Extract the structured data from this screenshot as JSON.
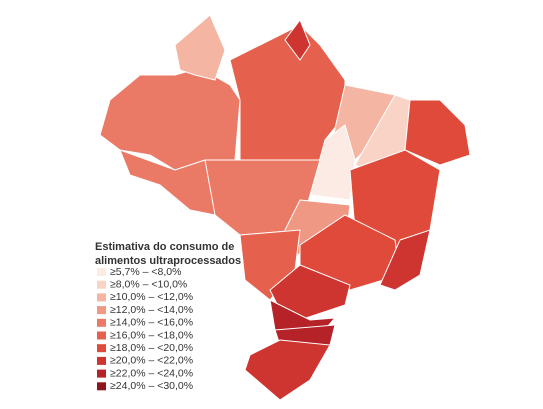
{
  "legend": {
    "title_lines": [
      "Estimativa do consumo de",
      "alimentos ultraprocessados"
    ],
    "items": [
      {
        "label": "≥5,7% – <8,0%",
        "color": "#fcebe4"
      },
      {
        "label": "≥8,0% – <10,0%",
        "color": "#f9d3c6"
      },
      {
        "label": "≥10,0% – <12,0%",
        "color": "#f4b5a3"
      },
      {
        "label": "≥12,0% – <14,0%",
        "color": "#ef9884"
      },
      {
        "label": "≥14,0% – <16,0%",
        "color": "#ea7a66"
      },
      {
        "label": "≥16,0% – <18,0%",
        "color": "#e5604d"
      },
      {
        "label": "≥18,0% – <20,0%",
        "color": "#df4a3a"
      },
      {
        "label": "≥20,0% – <22,0%",
        "color": "#cf3530"
      },
      {
        "label": "≥22,0% – <24,0%",
        "color": "#b52329"
      },
      {
        "label": "≥24,0% – <30,0%",
        "color": "#8e1520"
      }
    ]
  }
}
